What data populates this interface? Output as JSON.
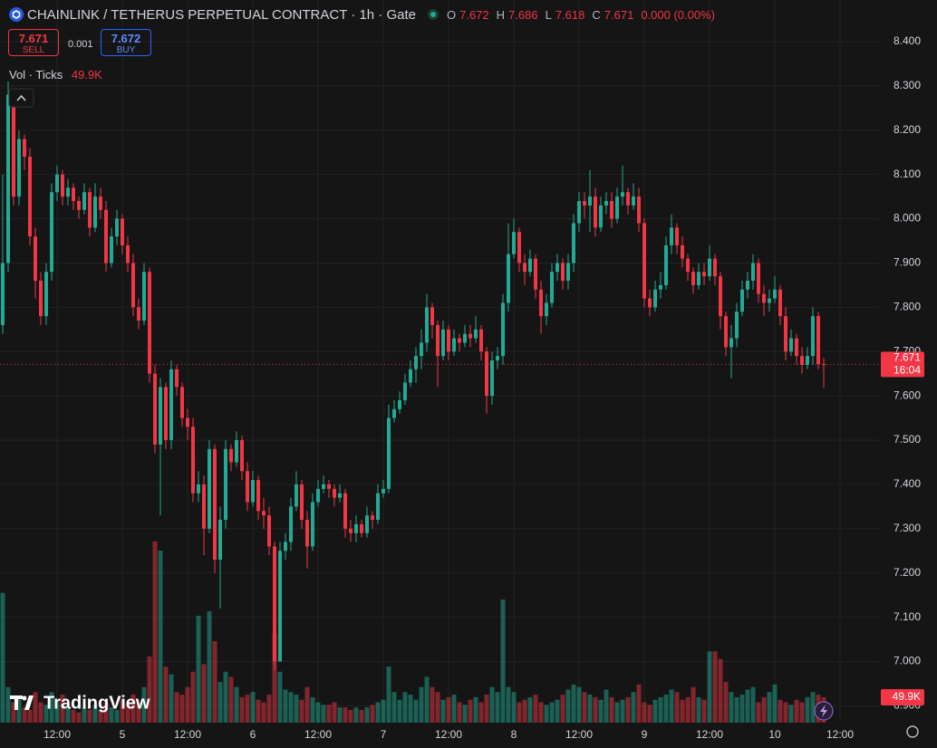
{
  "header": {
    "title": "CHAINLINK / TETHERUS PERPETUAL CONTRACT · 1h · Gate",
    "o_label": "O",
    "o": "7.672",
    "h_label": "H",
    "h": "7.686",
    "l_label": "L",
    "l": "7.618",
    "c_label": "C",
    "c": "7.671",
    "change": "0.000 (0.00%)"
  },
  "order": {
    "sell_price": "7.671",
    "sell": "SELL",
    "spread": "0.001",
    "buy_price": "7.672",
    "buy": "BUY"
  },
  "indicator": {
    "name": "Vol · Ticks",
    "value": "49.9K"
  },
  "brand": "TradingView",
  "chart_data": {
    "type": "candlestick",
    "up_color": "#22ab94",
    "down_color": "#f23645",
    "grid": true,
    "categories": [
      null,
      null,
      null,
      null,
      null,
      null,
      null,
      null,
      null,
      null,
      "12:00",
      null,
      null,
      null,
      null,
      null,
      null,
      null,
      null,
      null,
      null,
      null,
      "5",
      null,
      null,
      null,
      null,
      null,
      null,
      null,
      null,
      null,
      null,
      null,
      "12:00",
      null,
      null,
      null,
      null,
      null,
      null,
      null,
      null,
      null,
      null,
      null,
      "6",
      null,
      null,
      null,
      null,
      null,
      null,
      null,
      null,
      null,
      null,
      null,
      "12:00",
      null,
      null,
      null,
      null,
      null,
      null,
      null,
      null,
      null,
      null,
      null,
      "7",
      null,
      null,
      null,
      null,
      null,
      null,
      null,
      null,
      null,
      null,
      null,
      "12:00",
      null,
      null,
      null,
      null,
      null,
      null,
      null,
      null,
      null,
      null,
      null,
      "8",
      null,
      null,
      null,
      null,
      null,
      null,
      null,
      null,
      null,
      null,
      null,
      "12:00",
      null,
      null,
      null,
      null,
      null,
      null,
      null,
      null,
      null,
      null,
      null,
      "9",
      null,
      null,
      null,
      null,
      null,
      null,
      null,
      null,
      null,
      null,
      null,
      "12:00",
      null,
      null,
      null,
      null,
      null,
      null,
      null,
      null,
      null,
      null,
      null,
      "10",
      null,
      null,
      null,
      null,
      null,
      null,
      null,
      null,
      null,
      null,
      null,
      "12:00"
    ],
    "open": [
      7.76,
      7.9,
      8.28,
      8.05,
      8.18,
      8.14,
      7.96,
      7.86,
      7.78,
      7.88,
      8.06,
      8.1,
      8.05,
      8.07,
      8.04,
      8.02,
      8.06,
      7.98,
      8.05,
      8.02,
      7.9,
      7.96,
      8.0,
      7.94,
      7.9,
      7.8,
      7.77,
      7.88,
      7.65,
      7.49,
      7.62,
      7.5,
      7.66,
      7.62,
      7.55,
      7.53,
      7.38,
      7.4,
      7.3,
      7.48,
      7.23,
      7.32,
      7.48,
      7.45,
      7.5,
      7.43,
      7.36,
      7.41,
      7.34,
      7.33,
      7.26,
      7.0,
      7.25,
      7.27,
      7.35,
      7.4,
      7.32,
      7.26,
      7.36,
      7.39,
      7.4,
      7.39,
      7.37,
      7.38,
      7.3,
      7.29,
      7.31,
      7.29,
      7.33,
      7.32,
      7.38,
      7.39,
      7.55,
      7.57,
      7.59,
      7.63,
      7.66,
      7.69,
      7.72,
      7.8,
      7.76,
      7.69,
      7.75,
      7.7,
      7.73,
      7.72,
      7.74,
      7.73,
      7.75,
      7.7,
      7.6,
      7.68,
      7.69,
      7.81,
      7.92,
      7.97,
      7.9,
      7.88,
      7.91,
      7.84,
      7.78,
      7.81,
      7.88,
      7.9,
      7.86,
      7.9,
      7.99,
      8.04,
      8.03,
      8.05,
      7.98,
      8.03,
      8.04,
      8.0,
      8.05,
      8.06,
      8.03,
      8.05,
      7.99,
      7.82,
      7.8,
      7.84,
      7.85,
      7.94,
      7.98,
      7.94,
      7.91,
      7.88,
      7.85,
      7.88,
      7.87,
      7.91,
      7.87,
      7.78,
      7.71,
      7.73,
      7.79,
      7.84,
      7.86,
      7.9,
      7.83,
      7.81,
      7.82,
      7.84,
      7.78,
      7.7,
      7.73,
      7.69,
      7.67,
      7.69,
      7.78,
      7.672,
      null,
      null,
      null
    ],
    "high": [
      8.1,
      8.31,
      8.29,
      8.2,
      8.19,
      8.16,
      7.98,
      7.88,
      7.9,
      8.08,
      8.12,
      8.11,
      8.09,
      8.08,
      8.05,
      8.08,
      8.07,
      8.08,
      8.07,
      8.04,
      7.98,
      8.02,
      8.01,
      7.96,
      7.92,
      7.82,
      7.9,
      7.89,
      7.67,
      7.64,
      7.63,
      7.68,
      7.67,
      7.63,
      7.57,
      7.55,
      7.43,
      7.42,
      7.5,
      7.49,
      7.35,
      7.5,
      7.49,
      7.52,
      7.51,
      7.45,
      7.43,
      7.42,
      7.37,
      7.35,
      7.27,
      7.27,
      7.29,
      7.37,
      7.43,
      7.41,
      7.34,
      7.38,
      7.41,
      7.42,
      7.41,
      7.4,
      7.4,
      7.39,
      7.32,
      7.33,
      7.32,
      7.35,
      7.34,
      7.4,
      7.41,
      7.58,
      7.59,
      7.61,
      7.65,
      7.68,
      7.71,
      7.75,
      7.83,
      7.81,
      7.77,
      7.77,
      7.76,
      7.75,
      7.74,
      7.76,
      7.76,
      7.78,
      7.76,
      7.71,
      7.7,
      7.71,
      7.83,
      7.99,
      8.0,
      7.98,
      7.92,
      7.93,
      7.92,
      7.86,
      7.83,
      7.9,
      7.92,
      7.91,
      7.92,
      8.01,
      8.06,
      8.06,
      8.11,
      8.07,
      8.05,
      8.06,
      8.06,
      8.07,
      8.12,
      8.07,
      8.08,
      8.07,
      8.0,
      7.84,
      7.86,
      7.88,
      7.96,
      8.01,
      7.99,
      7.96,
      7.92,
      7.89,
      7.9,
      7.9,
      7.94,
      7.92,
      7.88,
      7.79,
      7.76,
      7.81,
      7.86,
      7.88,
      7.92,
      7.91,
      7.85,
      7.84,
      7.87,
      7.85,
      7.8,
      7.75,
      7.74,
      7.71,
      7.71,
      7.8,
      7.79,
      7.686,
      null,
      null,
      null
    ],
    "low": [
      7.74,
      7.88,
      8.03,
      8.03,
      8.11,
      7.94,
      7.82,
      7.76,
      7.76,
      7.86,
      8.04,
      8.03,
      8.03,
      8.02,
      8.0,
      8.01,
      7.96,
      7.97,
      8.0,
      7.88,
      7.89,
      7.94,
      7.92,
      7.88,
      7.78,
      7.75,
      7.76,
      7.63,
      7.47,
      7.33,
      7.48,
      7.48,
      7.6,
      7.53,
      7.5,
      7.36,
      7.36,
      7.24,
      7.29,
      7.2,
      7.12,
      7.3,
      7.43,
      7.44,
      7.41,
      7.34,
      7.35,
      7.32,
      7.3,
      7.24,
      6.98,
      7.0,
      7.23,
      7.25,
      7.34,
      7.3,
      7.21,
      7.25,
      7.35,
      7.38,
      7.37,
      7.35,
      7.36,
      7.28,
      7.27,
      7.27,
      7.28,
      7.28,
      7.3,
      7.31,
      7.37,
      7.38,
      7.54,
      7.56,
      7.58,
      7.62,
      7.63,
      7.66,
      7.7,
      7.73,
      7.62,
      7.68,
      7.68,
      7.69,
      7.7,
      7.71,
      7.71,
      7.72,
      7.68,
      7.56,
      7.58,
      7.66,
      7.67,
      7.79,
      7.91,
      7.88,
      7.85,
      7.87,
      7.82,
      7.74,
      7.76,
      7.8,
      7.86,
      7.84,
      7.84,
      7.88,
      7.97,
      8.0,
      7.97,
      7.96,
      7.97,
      8.01,
      7.98,
      7.99,
      8.03,
      8.01,
      8.02,
      7.97,
      7.8,
      7.78,
      7.79,
      7.82,
      7.84,
      7.92,
      7.92,
      7.89,
      7.86,
      7.83,
      7.84,
      7.85,
      7.86,
      7.85,
      7.75,
      7.69,
      7.64,
      7.71,
      7.78,
      7.82,
      7.84,
      7.81,
      7.78,
      7.79,
      7.81,
      7.76,
      7.68,
      7.69,
      7.67,
      7.65,
      7.66,
      7.67,
      7.66,
      7.618,
      null,
      null,
      null
    ],
    "close": [
      7.9,
      8.28,
      8.05,
      8.18,
      8.14,
      7.96,
      7.86,
      7.78,
      7.88,
      8.06,
      8.1,
      8.05,
      8.07,
      8.04,
      8.02,
      8.06,
      7.98,
      8.05,
      8.02,
      7.9,
      7.96,
      8.0,
      7.94,
      7.9,
      7.8,
      7.77,
      7.88,
      7.65,
      7.49,
      7.62,
      7.5,
      7.66,
      7.62,
      7.55,
      7.53,
      7.38,
      7.4,
      7.3,
      7.48,
      7.23,
      7.32,
      7.48,
      7.45,
      7.5,
      7.43,
      7.36,
      7.41,
      7.34,
      7.33,
      7.26,
      7.0,
      7.25,
      7.27,
      7.35,
      7.4,
      7.32,
      7.26,
      7.36,
      7.39,
      7.4,
      7.39,
      7.37,
      7.38,
      7.3,
      7.29,
      7.31,
      7.29,
      7.33,
      7.32,
      7.38,
      7.39,
      7.55,
      7.57,
      7.59,
      7.63,
      7.66,
      7.69,
      7.72,
      7.8,
      7.76,
      7.69,
      7.75,
      7.7,
      7.73,
      7.72,
      7.74,
      7.73,
      7.75,
      7.7,
      7.6,
      7.68,
      7.69,
      7.81,
      7.92,
      7.97,
      7.9,
      7.88,
      7.91,
      7.84,
      7.78,
      7.81,
      7.88,
      7.9,
      7.86,
      7.9,
      7.99,
      8.04,
      8.03,
      8.05,
      7.98,
      8.03,
      8.04,
      8.0,
      8.05,
      8.06,
      8.03,
      8.05,
      7.99,
      7.82,
      7.8,
      7.84,
      7.85,
      7.94,
      7.98,
      7.94,
      7.91,
      7.88,
      7.85,
      7.88,
      7.87,
      7.91,
      7.87,
      7.78,
      7.71,
      7.73,
      7.79,
      7.84,
      7.86,
      7.9,
      7.83,
      7.81,
      7.82,
      7.84,
      7.78,
      7.7,
      7.73,
      7.69,
      7.67,
      7.69,
      7.78,
      7.672,
      7.671,
      null,
      null,
      null
    ],
    "volume": [
      255000,
      70000,
      40000,
      50000,
      30000,
      25000,
      60000,
      40000,
      35000,
      60000,
      40000,
      55000,
      30000,
      25000,
      20000,
      30000,
      25000,
      35000,
      25000,
      40000,
      30000,
      25000,
      45000,
      35000,
      55000,
      40000,
      70000,
      130000,
      356000,
      338000,
      110000,
      95000,
      60000,
      55000,
      70000,
      100000,
      210000,
      115000,
      219000,
      160000,
      80000,
      100000,
      90000,
      70000,
      50000,
      55000,
      60000,
      45000,
      40000,
      55000,
      175000,
      100000,
      65000,
      60000,
      55000,
      45000,
      70000,
      50000,
      40000,
      35000,
      35000,
      40000,
      30000,
      30000,
      25000,
      30000,
      25000,
      30000,
      35000,
      40000,
      45000,
      110000,
      60000,
      45000,
      60000,
      55000,
      45000,
      70000,
      90000,
      70000,
      60000,
      45000,
      50000,
      55000,
      40000,
      35000,
      45000,
      50000,
      40000,
      55000,
      70000,
      60000,
      242000,
      70000,
      60000,
      40000,
      45000,
      50000,
      55000,
      40000,
      35000,
      40000,
      45000,
      55000,
      65000,
      75000,
      70000,
      60000,
      55000,
      50000,
      45000,
      65000,
      50000,
      40000,
      45000,
      50000,
      60000,
      75000,
      40000,
      35000,
      45000,
      50000,
      55000,
      65000,
      60000,
      45000,
      50000,
      70000,
      50000,
      45000,
      140000,
      140000,
      125000,
      80000,
      60000,
      50000,
      55000,
      65000,
      70000,
      40000,
      50000,
      60000,
      75000,
      45000,
      40000,
      35000,
      45000,
      40000,
      50000,
      60000,
      55000,
      49900,
      null,
      null,
      null
    ],
    "last_volume_label": "49.9K",
    "last_price": 7.671,
    "countdown": "16:04",
    "ylim": [
      6.862,
      8.494
    ],
    "yticks": [
      {
        "value": 8.4,
        "label": "8.400"
      },
      {
        "value": 8.3,
        "label": "8.300"
      },
      {
        "value": 8.2,
        "label": "8.200"
      },
      {
        "value": 8.1,
        "label": "8.100"
      },
      {
        "value": 8.0,
        "label": "8.000"
      },
      {
        "value": 7.9,
        "label": "7.900"
      },
      {
        "value": 7.8,
        "label": "7.800"
      },
      {
        "value": 7.7,
        "label": "7.700"
      },
      {
        "value": 7.6,
        "label": "7.600"
      },
      {
        "value": 7.5,
        "label": "7.500"
      },
      {
        "value": 7.4,
        "label": "7.400"
      },
      {
        "value": 7.3,
        "label": "7.300"
      },
      {
        "value": 7.2,
        "label": "7.200"
      },
      {
        "value": 7.1,
        "label": "7.100"
      },
      {
        "value": 7.0,
        "label": "7.000"
      },
      {
        "value": 6.9,
        "label": "6.900"
      }
    ],
    "volume_ylim": [
      0,
      1420000
    ]
  }
}
